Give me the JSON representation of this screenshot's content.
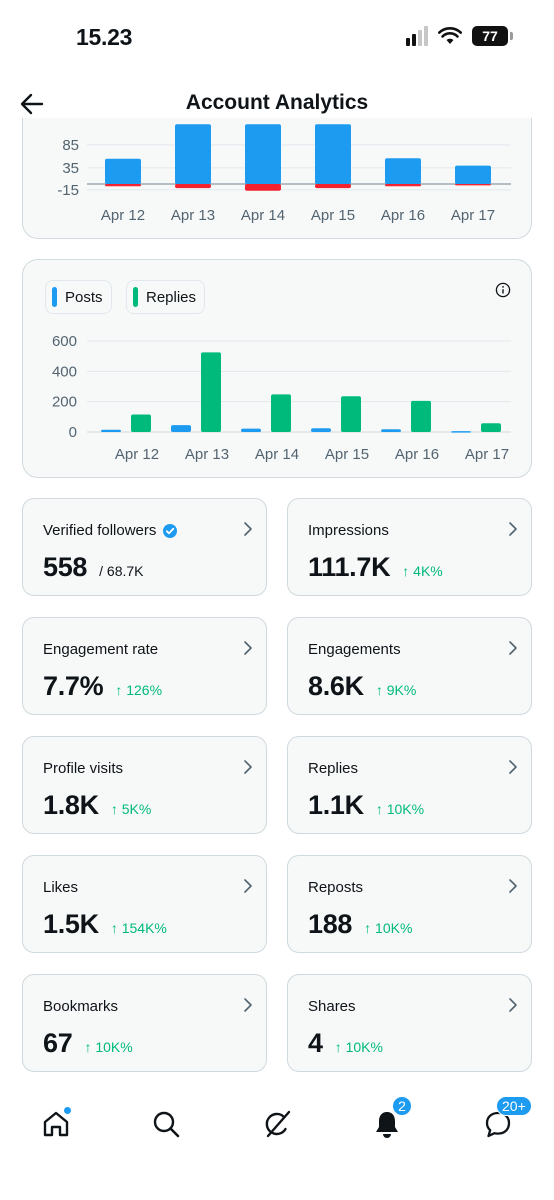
{
  "status_bar": {
    "time": "15.23",
    "battery": "77"
  },
  "header": {
    "title": "Account Analytics"
  },
  "colors": {
    "posts": "#1d9bf0",
    "replies": "#00ba7c",
    "negative": "#f4212e",
    "positive_change": "#00ba7c"
  },
  "chart_data": [
    {
      "type": "bar",
      "categories": [
        "Apr 12",
        "Apr 13",
        "Apr 14",
        "Apr 15",
        "Apr 16",
        "Apr 17"
      ],
      "y_ticks": [
        "85",
        "35",
        "-15"
      ],
      "series": [
        {
          "values": [
            55,
            130,
            130,
            130,
            56,
            40
          ]
        },
        {
          "values": [
            -4,
            -8,
            -14,
            -8,
            -4,
            -2
          ]
        }
      ],
      "ylim": [
        -25,
        110
      ],
      "grid": true
    },
    {
      "type": "bar",
      "categories": [
        "Apr 12",
        "Apr 13",
        "Apr 14",
        "Apr 15",
        "Apr 16",
        "Apr 17"
      ],
      "y_ticks": [
        "600",
        "400",
        "200",
        "0"
      ],
      "series": [
        {
          "name": "Posts",
          "values": [
            15,
            45,
            22,
            25,
            18,
            6
          ]
        },
        {
          "name": "Replies",
          "values": [
            115,
            525,
            248,
            236,
            205,
            58
          ]
        }
      ],
      "ylim": [
        0,
        600
      ],
      "grid": true,
      "legend": "top-left"
    }
  ],
  "stats": [
    {
      "label": "Verified followers",
      "value": "558",
      "sub": "/ 68.7K",
      "change": "",
      "verified": true
    },
    {
      "label": "Impressions",
      "value": "111.7K",
      "sub": "",
      "change": "↑ 4K%"
    },
    {
      "label": "Engagement rate",
      "value": "7.7%",
      "sub": "",
      "change": "↑ 126%"
    },
    {
      "label": "Engagements",
      "value": "8.6K",
      "sub": "",
      "change": "↑ 9K%"
    },
    {
      "label": "Profile visits",
      "value": "1.8K",
      "sub": "",
      "change": "↑ 5K%"
    },
    {
      "label": "Replies",
      "value": "1.1K",
      "sub": "",
      "change": "↑ 10K%"
    },
    {
      "label": "Likes",
      "value": "1.5K",
      "sub": "",
      "change": "↑ 154K%"
    },
    {
      "label": "Reposts",
      "value": "188",
      "sub": "",
      "change": "↑ 10K%"
    },
    {
      "label": "Bookmarks",
      "value": "67",
      "sub": "",
      "change": "↑ 10K%"
    },
    {
      "label": "Shares",
      "value": "4",
      "sub": "",
      "change": "↑ 10K%"
    }
  ],
  "nav": {
    "items": [
      "home-icon",
      "search-icon",
      "grok-icon",
      "notifications-icon",
      "messages-icon"
    ],
    "notifications_badge": "2",
    "messages_badge": "20+"
  }
}
